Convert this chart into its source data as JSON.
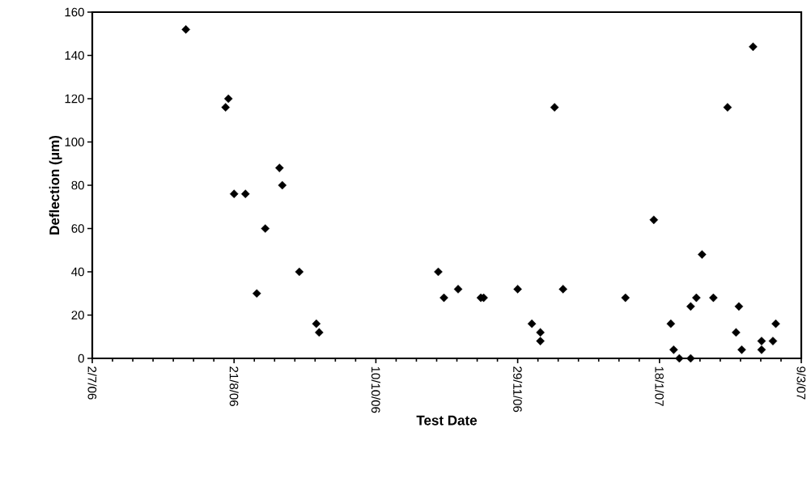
{
  "chart_data": {
    "type": "scatter",
    "xlabel": "Test Date",
    "ylabel": "Deflection (μm)",
    "x": [
      "2006-08-04",
      "2006-08-18",
      "2006-08-19",
      "2006-08-21",
      "2006-08-25",
      "2006-08-29",
      "2006-09-01",
      "2006-09-06",
      "2006-09-07",
      "2006-09-13",
      "2006-09-19",
      "2006-09-20",
      "2006-11-01",
      "2006-11-03",
      "2006-11-08",
      "2006-11-16",
      "2006-11-17",
      "2006-11-29",
      "2006-12-04",
      "2006-12-07",
      "2006-12-07",
      "2006-12-12",
      "2006-12-15",
      "2007-01-06",
      "2007-01-16",
      "2007-01-22",
      "2007-01-23",
      "2007-01-25",
      "2007-01-29",
      "2007-01-29",
      "2007-01-31",
      "2007-02-02",
      "2007-02-06",
      "2007-02-11",
      "2007-02-14",
      "2007-02-15",
      "2007-02-16",
      "2007-02-20",
      "2007-02-23",
      "2007-02-23",
      "2007-02-27",
      "2007-02-28"
    ],
    "series": [
      {
        "color": "#000000",
        "values": [
          152,
          116,
          120,
          76,
          76,
          30,
          60,
          88,
          80,
          40,
          16,
          12,
          40,
          28,
          32,
          28,
          28,
          32,
          16,
          12,
          8,
          116,
          32,
          28,
          64,
          16,
          4,
          0,
          24,
          0,
          28,
          48,
          28,
          116,
          12,
          24,
          4,
          144,
          4,
          8,
          8,
          16
        ]
      }
    ],
    "xlim": [
      "2006-07-02",
      "2007-03-09"
    ],
    "xticks": [
      {
        "value": "2006-07-02",
        "label": "2/7/06"
      },
      {
        "value": "2006-08-21",
        "label": "21/8/06"
      },
      {
        "value": "2006-10-10",
        "label": "10/10/06"
      },
      {
        "value": "2006-11-29",
        "label": "29/11/06"
      },
      {
        "value": "2007-01-18",
        "label": "18/1/07"
      },
      {
        "value": "2007-03-09",
        "label": "9/3/07"
      }
    ],
    "ylim": [
      0,
      160
    ],
    "yticks": [
      0,
      20,
      40,
      60,
      80,
      100,
      120,
      140,
      160
    ],
    "marker": "diamond",
    "grid": false
  }
}
